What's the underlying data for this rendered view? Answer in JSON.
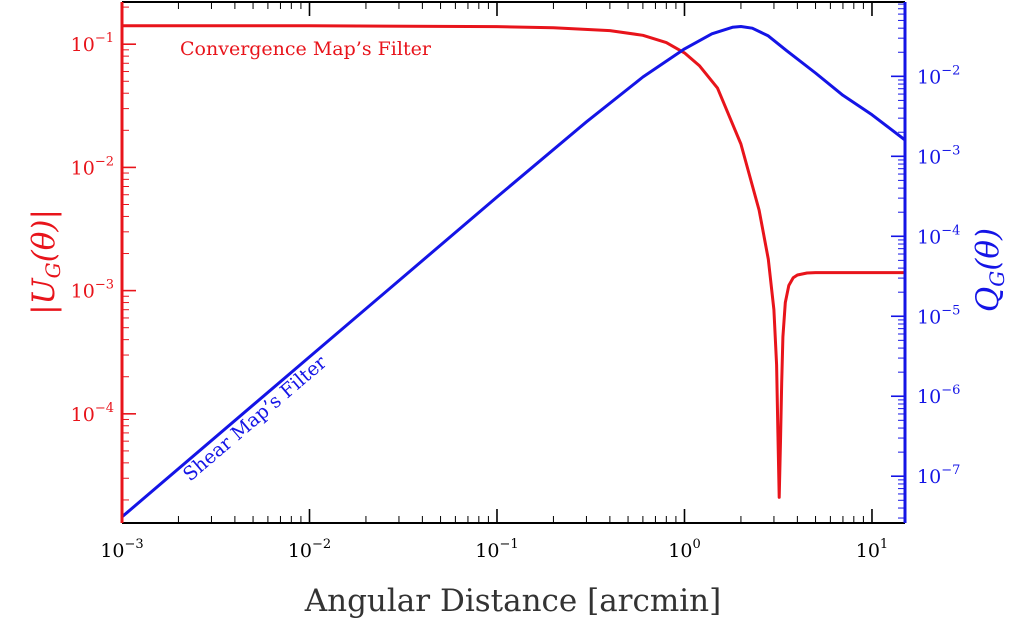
{
  "chart_data": {
    "type": "line",
    "xscale": "log",
    "xlim": [
      0.001,
      15
    ],
    "xlabel": "Angular Distance [arcmin]",
    "x_ticks": [
      {
        "base": "10",
        "exp": "−3",
        "value": 0.001
      },
      {
        "base": "10",
        "exp": "−2",
        "value": 0.01
      },
      {
        "base": "10",
        "exp": "−1",
        "value": 0.1
      },
      {
        "base": "10",
        "exp": "0",
        "value": 1
      },
      {
        "base": "10",
        "exp": "1",
        "value": 10
      }
    ],
    "y_left": {
      "label": "|U_G(θ)|",
      "label_main": "|U",
      "label_sub": "G",
      "label_tail": "(θ)|",
      "scale": "log",
      "ylim": [
        1.3e-05,
        0.22
      ],
      "color": "#e8141b",
      "ticks": [
        {
          "base": "10",
          "exp": "−1",
          "value": 0.1
        },
        {
          "base": "10",
          "exp": "−2",
          "value": 0.01
        },
        {
          "base": "10",
          "exp": "−3",
          "value": 0.001
        },
        {
          "base": "10",
          "exp": "−4",
          "value": 0.0001
        }
      ]
    },
    "y_right": {
      "label": "Q_G(θ)",
      "label_main": "Q",
      "label_sub": "G",
      "label_tail": "(θ)",
      "scale": "log",
      "ylim": [
        2.6e-08,
        0.085
      ],
      "color": "#1414e6",
      "ticks": [
        {
          "base": "10",
          "exp": "−2",
          "value": 0.01
        },
        {
          "base": "10",
          "exp": "−3",
          "value": 0.001
        },
        {
          "base": "10",
          "exp": "−4",
          "value": 0.0001
        },
        {
          "base": "10",
          "exp": "−5",
          "value": 1e-05
        },
        {
          "base": "10",
          "exp": "−6",
          "value": 1e-06
        },
        {
          "base": "10",
          "exp": "−7",
          "value": 1e-07
        }
      ]
    },
    "series": [
      {
        "name": "Convergence Map’s Filter",
        "axis": "left",
        "color": "#e8141b",
        "x": [
          0.001,
          0.01,
          0.1,
          0.2,
          0.4,
          0.6,
          0.8,
          1.0,
          1.2,
          1.5,
          2.0,
          2.5,
          2.8,
          3.0,
          3.1,
          3.15,
          3.2,
          3.25,
          3.3,
          3.35,
          3.45,
          3.6,
          3.8,
          4.0,
          4.5,
          5.0,
          6.0,
          8.0,
          15.0
        ],
        "y": [
          0.141,
          0.141,
          0.139,
          0.136,
          0.129,
          0.118,
          0.103,
          0.085,
          0.067,
          0.044,
          0.0155,
          0.0045,
          0.0018,
          0.0007,
          0.00025,
          7e-05,
          2.1e-05,
          6e-05,
          0.00018,
          0.00042,
          0.0008,
          0.0011,
          0.00127,
          0.00134,
          0.00139,
          0.0014,
          0.0014,
          0.0014,
          0.0014
        ]
      },
      {
        "name": "Shear Map’s Filter",
        "axis": "right",
        "color": "#1414e6",
        "x": [
          0.001,
          0.01,
          0.1,
          0.3,
          0.6,
          1.0,
          1.4,
          1.8,
          2.0,
          2.3,
          2.8,
          3.5,
          5.0,
          7.0,
          10.0,
          15.0
        ],
        "y": [
          3.1e-08,
          3.1e-06,
          0.00031,
          0.0027,
          0.0098,
          0.022,
          0.034,
          0.041,
          0.042,
          0.04,
          0.032,
          0.021,
          0.011,
          0.0058,
          0.0033,
          0.0016
        ]
      }
    ],
    "annotations": [
      {
        "text": "Convergence Map’s Filter",
        "series": "left"
      },
      {
        "text": "Shear Map’s Filter",
        "series": "right"
      }
    ]
  }
}
